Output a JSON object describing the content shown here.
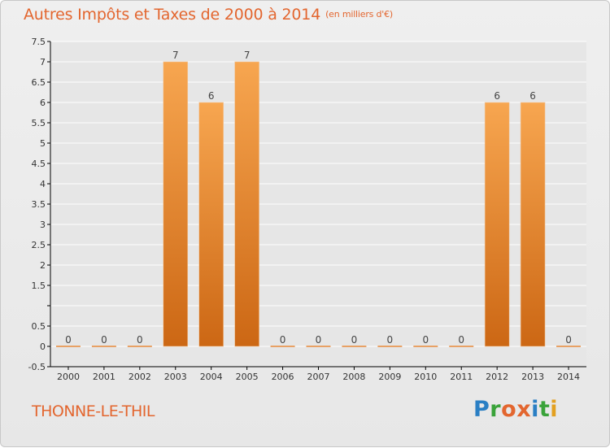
{
  "header": {
    "title": "Autres Impôts et Taxes de 2000 à 2014",
    "unit_note": "(en milliers d'€)"
  },
  "footer": {
    "city": "THONNE-LE-THIL",
    "logo_text": "Proxiti"
  },
  "colors": {
    "bar_top": "#f7a650",
    "bar_bottom": "#cc6714",
    "title": "#e3662f",
    "grid": "#ffffff",
    "axis": "#000000"
  },
  "chart_data": {
    "type": "bar",
    "title": "Autres Impôts et Taxes de 2000 à 2014",
    "subtitle": "(en milliers d'€)",
    "categories": [
      "2000",
      "2001",
      "2002",
      "2003",
      "2004",
      "2005",
      "2006",
      "2007",
      "2008",
      "2009",
      "2010",
      "2011",
      "2012",
      "2013",
      "2014"
    ],
    "values": [
      0,
      0,
      0,
      7,
      6,
      7,
      0,
      0,
      0,
      0,
      0,
      0,
      6,
      6,
      0
    ],
    "data_labels": [
      "0",
      "0",
      "0",
      "7",
      "6",
      "7",
      "0",
      "0",
      "0",
      "0",
      "0",
      "0",
      "6",
      "6",
      "0"
    ],
    "ylim": [
      -0.5,
      7.5
    ],
    "yticks": [
      -0.5,
      0,
      0.5,
      1,
      1.5,
      2,
      2.5,
      3,
      3.5,
      4,
      4.5,
      5,
      5.5,
      6,
      6.5,
      7,
      7.5
    ],
    "ytick_labels": [
      "-0.5",
      "0",
      "0.5",
      "",
      "1.5",
      "2",
      "2.5",
      "3",
      "3.5",
      "4",
      "4.5",
      "5",
      "5.5",
      "6",
      "6.5",
      "7",
      "7.5"
    ],
    "xlabel": "",
    "ylabel": "",
    "grid": true
  }
}
